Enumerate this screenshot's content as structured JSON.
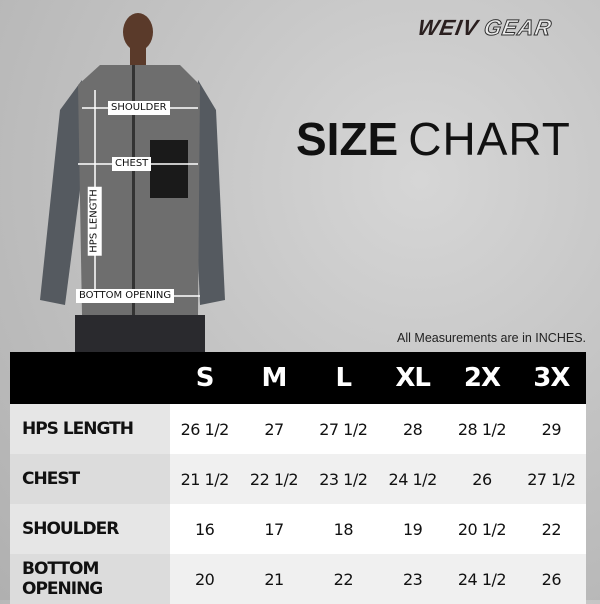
{
  "brand": {
    "logo_primary": "WEIV",
    "logo_secondary": "GEAR"
  },
  "title": {
    "bold": "SIZE",
    "light": "CHART"
  },
  "note": "All Measurements are in INCHES.",
  "figure_labels": {
    "shoulder": "SHOULDER",
    "chest": "CHEST",
    "hps_length": "HPS LENGTH",
    "bottom_opening": "BOTTOM OPENING"
  },
  "table": {
    "sizes": [
      "S",
      "M",
      "L",
      "XL",
      "2X",
      "3X"
    ],
    "rows": [
      {
        "label": "HPS LENGTH",
        "values": [
          "26 1/2",
          "27",
          "27 1/2",
          "28",
          "28 1/2",
          "29"
        ]
      },
      {
        "label": "CHEST",
        "values": [
          "21 1/2",
          "22 1/2",
          "23 1/2",
          "24 1/2",
          "26",
          "27 1/2"
        ]
      },
      {
        "label": "SHOULDER",
        "values": [
          "16",
          "17",
          "18",
          "19",
          "20 1/2",
          "22"
        ]
      },
      {
        "label": "BOTTOM OPENING",
        "values": [
          "20",
          "21",
          "22",
          "23",
          "24 1/2",
          "26"
        ]
      }
    ]
  },
  "colors": {
    "header_bg": "#000000",
    "vest": "#6e6e6e",
    "sleeve": "#555a60"
  }
}
